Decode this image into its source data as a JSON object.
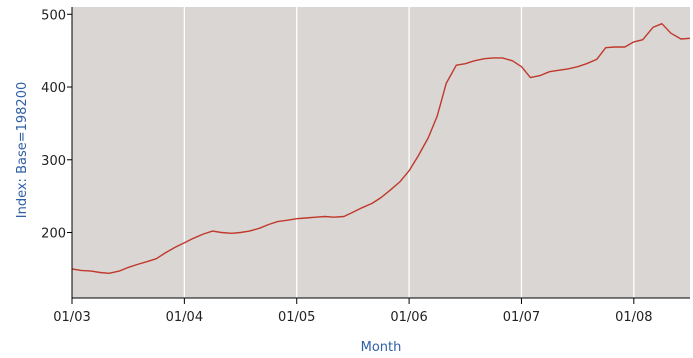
{
  "chart_data": {
    "type": "line",
    "title": "",
    "xlabel": "Month",
    "ylabel": "Index: Base=198200",
    "xlim": [
      2003.0,
      2008.5
    ],
    "ylim": [
      110,
      510
    ],
    "x_ticks": [
      2003,
      2004,
      2005,
      2006,
      2007,
      2008
    ],
    "x_tick_labels": [
      "01/03",
      "01/04",
      "01/05",
      "01/06",
      "01/07",
      "01/08"
    ],
    "y_ticks": [
      200,
      300,
      400,
      500
    ],
    "y_tick_labels": [
      "200",
      "300",
      "400",
      "500"
    ],
    "grid": "vertical",
    "legend": "none",
    "colors": {
      "plot_bg": "#d9d6d4",
      "grid": "#ffffff",
      "line": "#c0392b",
      "axis": "#000000",
      "label": "#2f5fa5"
    },
    "series": [
      {
        "points": [
          [
            2003.0,
            150
          ],
          [
            2003.08,
            148
          ],
          [
            2003.17,
            147
          ],
          [
            2003.25,
            145
          ],
          [
            2003.33,
            144
          ],
          [
            2003.42,
            147
          ],
          [
            2003.5,
            152
          ],
          [
            2003.58,
            156
          ],
          [
            2003.67,
            160
          ],
          [
            2003.75,
            164
          ],
          [
            2003.83,
            172
          ],
          [
            2003.92,
            180
          ],
          [
            2004.0,
            186
          ],
          [
            2004.08,
            192
          ],
          [
            2004.17,
            198
          ],
          [
            2004.25,
            202
          ],
          [
            2004.33,
            200
          ],
          [
            2004.42,
            199
          ],
          [
            2004.5,
            200
          ],
          [
            2004.58,
            202
          ],
          [
            2004.67,
            206
          ],
          [
            2004.75,
            211
          ],
          [
            2004.83,
            215
          ],
          [
            2004.92,
            217
          ],
          [
            2005.0,
            219
          ],
          [
            2005.08,
            220
          ],
          [
            2005.17,
            221
          ],
          [
            2005.25,
            222
          ],
          [
            2005.33,
            221
          ],
          [
            2005.42,
            222
          ],
          [
            2005.5,
            228
          ],
          [
            2005.58,
            234
          ],
          [
            2005.67,
            240
          ],
          [
            2005.75,
            248
          ],
          [
            2005.83,
            258
          ],
          [
            2005.92,
            270
          ],
          [
            2006.0,
            285
          ],
          [
            2006.08,
            305
          ],
          [
            2006.17,
            330
          ],
          [
            2006.25,
            360
          ],
          [
            2006.33,
            405
          ],
          [
            2006.42,
            430
          ],
          [
            2006.5,
            432
          ],
          [
            2006.58,
            436
          ],
          [
            2006.67,
            439
          ],
          [
            2006.75,
            440
          ],
          [
            2006.83,
            440
          ],
          [
            2006.92,
            436
          ],
          [
            2007.0,
            428
          ],
          [
            2007.08,
            413
          ],
          [
            2007.17,
            416
          ],
          [
            2007.25,
            421
          ],
          [
            2007.33,
            423
          ],
          [
            2007.42,
            425
          ],
          [
            2007.5,
            428
          ],
          [
            2007.58,
            432
          ],
          [
            2007.67,
            438
          ],
          [
            2007.75,
            454
          ],
          [
            2007.83,
            455
          ],
          [
            2007.92,
            455
          ],
          [
            2008.0,
            462
          ],
          [
            2008.08,
            465
          ],
          [
            2008.17,
            482
          ],
          [
            2008.25,
            487
          ],
          [
            2008.33,
            474
          ],
          [
            2008.42,
            466
          ],
          [
            2008.5,
            467
          ]
        ]
      }
    ]
  }
}
